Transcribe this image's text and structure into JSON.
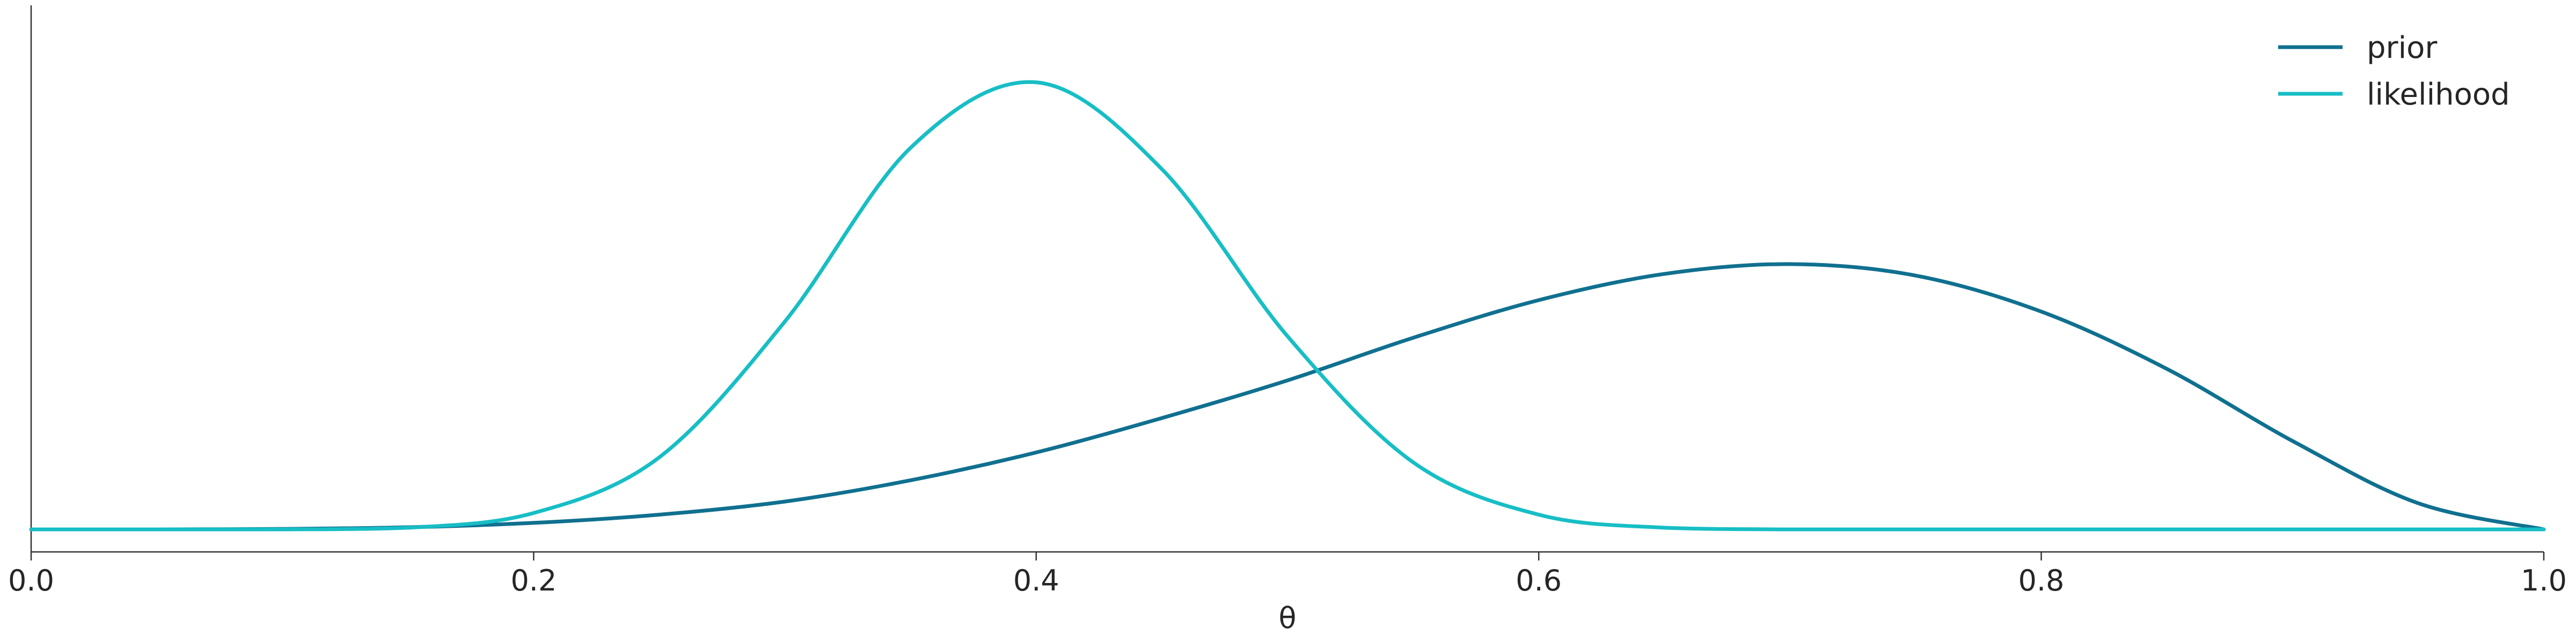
{
  "chart_data": {
    "type": "line",
    "title": "",
    "xlabel": "θ",
    "ylabel": "",
    "xlim": [
      0.0,
      1.0
    ],
    "ylim": [
      0.0,
      3.2
    ],
    "xticks": [
      "0.0",
      "0.2",
      "0.4",
      "0.6",
      "0.8",
      "1.0"
    ],
    "grid": false,
    "legend_position": "top-right",
    "series": [
      {
        "name": "prior",
        "color": "#10708f",
        "x": [
          0.0,
          0.05,
          0.1,
          0.15,
          0.2,
          0.25,
          0.3,
          0.35,
          0.4,
          0.45,
          0.5,
          0.55,
          0.6,
          0.65,
          0.7,
          0.75,
          0.8,
          0.85,
          0.9,
          0.95,
          1.0
        ],
        "y": [
          0.0,
          0.0,
          0.003,
          0.013,
          0.04,
          0.09,
          0.17,
          0.3,
          0.47,
          0.68,
          0.91,
          1.17,
          1.4,
          1.56,
          1.62,
          1.55,
          1.33,
          0.98,
          0.54,
          0.16,
          0.0
        ]
      },
      {
        "name": "likelihood",
        "color": "#17bec5",
        "x": [
          0.0,
          0.05,
          0.1,
          0.15,
          0.2,
          0.25,
          0.3,
          0.35,
          0.4,
          0.45,
          0.5,
          0.55,
          0.6,
          0.65,
          0.7,
          0.75,
          0.8,
          0.85,
          0.9,
          0.95,
          1.0
        ],
        "y": [
          0.0,
          0.0,
          0.0,
          0.01,
          0.1,
          0.44,
          1.27,
          2.33,
          2.73,
          2.2,
          1.18,
          0.41,
          0.09,
          0.01,
          0.0,
          0.0,
          0.0,
          0.0,
          0.0,
          0.0,
          0.0
        ]
      }
    ]
  }
}
